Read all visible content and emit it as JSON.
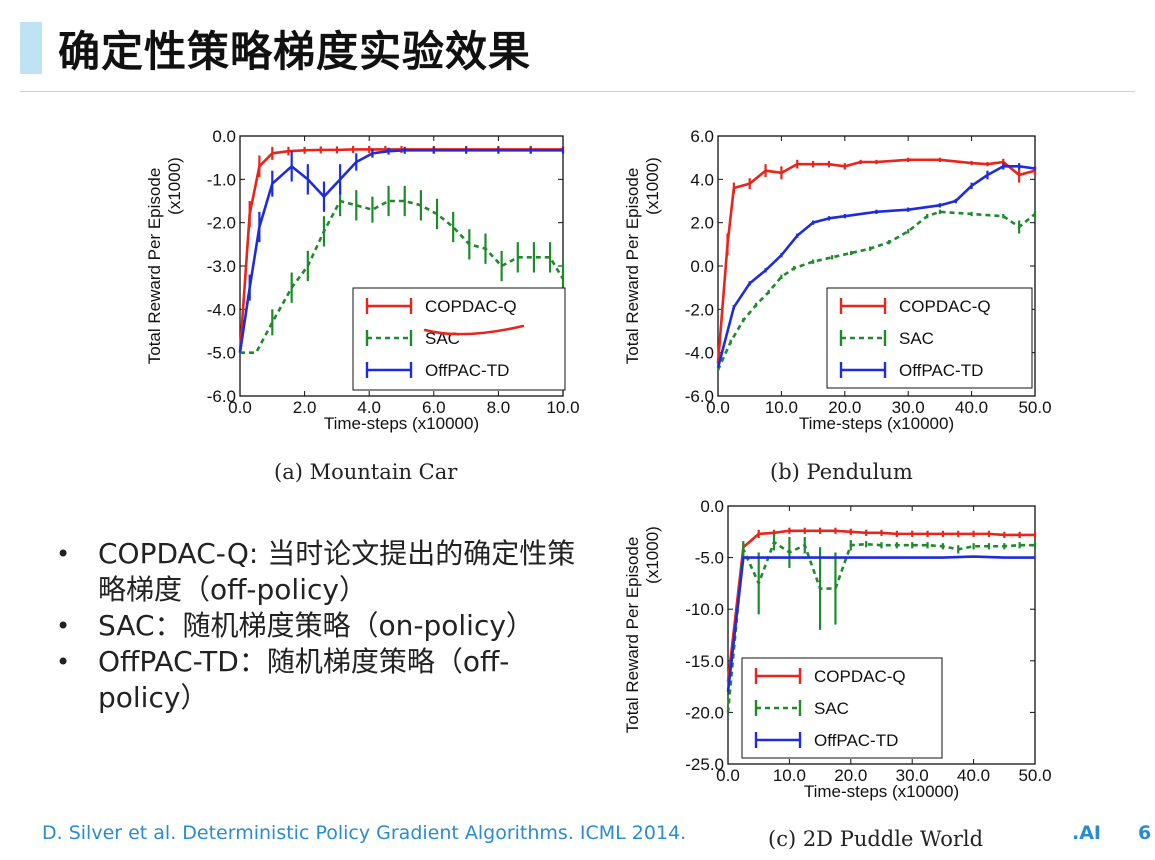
{
  "title": "确定性策略梯度实验效果",
  "bullets": [
    "COPDAC-Q: 当时论文提出的确定性策略梯度（off-policy）",
    "SAC：随机梯度策略（on-policy）",
    "OffPAC-TD：随机梯度策略（off-policy）"
  ],
  "footer": "D. Silver et al. Deterministic Policy Gradient Algorithms. ICML 2014.",
  "footer_brand": ".AI",
  "page_number": "6",
  "colors": {
    "copdac": "#e8241c",
    "sac": "#1f8a2c",
    "offpac": "#1e2cdc",
    "annotation": "#e8241c"
  },
  "chart_data": [
    {
      "id": "mountain",
      "type": "line",
      "caption": "(a) Mountain Car",
      "title": "",
      "xlabel": "Time-steps (x10000)",
      "ylabel": "Total Reward Per Episode (x1000)",
      "xlim": [
        0,
        10
      ],
      "ylim": [
        -6,
        0
      ],
      "xticks": [
        "0.0",
        "2.0",
        "4.0",
        "6.0",
        "8.0",
        "10.0"
      ],
      "yticks": [
        "0.0",
        "-1.0",
        "-2.0",
        "-3.0",
        "-4.0",
        "-5.0",
        "-6.0"
      ],
      "legend": {
        "position": "bottom-right",
        "entries": [
          "COPDAC-Q",
          "SAC",
          "OffPAC-TD"
        ]
      },
      "series": [
        {
          "name": "COPDAC-Q",
          "style": "solid",
          "x": [
            0,
            0.3,
            0.6,
            1.0,
            1.5,
            2.0,
            2.5,
            3.0,
            3.5,
            4.0,
            4.5,
            5.0,
            6.0,
            7.0,
            8.0,
            9.0,
            10.0
          ],
          "values": [
            -5.0,
            -1.8,
            -0.7,
            -0.4,
            -0.35,
            -0.33,
            -0.32,
            -0.32,
            -0.31,
            -0.31,
            -0.31,
            -0.31,
            -0.31,
            -0.31,
            -0.31,
            -0.31,
            -0.31
          ],
          "err": [
            0,
            0.3,
            0.25,
            0.15,
            0.1,
            0.08,
            0.08,
            0.08,
            0.08,
            0.08,
            0.08,
            0.08,
            0.08,
            0.08,
            0.08,
            0.08,
            0.08
          ]
        },
        {
          "name": "SAC",
          "style": "dashed",
          "x": [
            0,
            0.5,
            1.0,
            1.6,
            2.1,
            2.6,
            3.1,
            3.6,
            4.1,
            4.6,
            5.1,
            5.6,
            6.1,
            6.6,
            7.1,
            7.6,
            8.1,
            8.6,
            9.1,
            9.6,
            10.0
          ],
          "values": [
            -5.0,
            -5.0,
            -4.3,
            -3.5,
            -3.0,
            -2.2,
            -1.5,
            -1.6,
            -1.7,
            -1.5,
            -1.5,
            -1.6,
            -1.8,
            -2.1,
            -2.5,
            -2.6,
            -3.0,
            -2.8,
            -2.8,
            -2.8,
            -3.3
          ],
          "err": [
            0,
            0,
            0.3,
            0.35,
            0.35,
            0.35,
            0.35,
            0.35,
            0.3,
            0.35,
            0.35,
            0.35,
            0.35,
            0.35,
            0.35,
            0.35,
            0.35,
            0.35,
            0.35,
            0.35,
            0.35
          ]
        },
        {
          "name": "OffPAC-TD",
          "style": "solid",
          "x": [
            0,
            0.3,
            0.6,
            1.0,
            1.6,
            2.1,
            2.6,
            3.1,
            3.6,
            4.1,
            4.6,
            5.1,
            6.0,
            7.0,
            8.0,
            9.0,
            10.0
          ],
          "values": [
            -5.0,
            -3.5,
            -2.1,
            -1.1,
            -0.7,
            -1.0,
            -1.4,
            -1.0,
            -0.6,
            -0.4,
            -0.35,
            -0.33,
            -0.33,
            -0.33,
            -0.33,
            -0.33,
            -0.33
          ],
          "err": [
            0,
            0.3,
            0.35,
            0.3,
            0.35,
            0.35,
            0.35,
            0.35,
            0.2,
            0.1,
            0.08,
            0.08,
            0.08,
            0.08,
            0.08,
            0.08,
            0.08
          ]
        }
      ]
    },
    {
      "id": "pendulum",
      "type": "line",
      "caption": "(b) Pendulum",
      "title": "",
      "xlabel": "Time-steps (x10000)",
      "ylabel": "Total Reward Per Episode (x1000)",
      "xlim": [
        0,
        50
      ],
      "ylim": [
        -6,
        6
      ],
      "xticks": [
        "0.0",
        "10.0",
        "20.0",
        "30.0",
        "40.0",
        "50.0"
      ],
      "yticks": [
        "6.0",
        "4.0",
        "2.0",
        "0.0",
        "-2.0",
        "-4.0",
        "-6.0"
      ],
      "legend": {
        "position": "bottom-right",
        "entries": [
          "COPDAC-Q",
          "SAC",
          "OffPAC-TD"
        ]
      },
      "series": [
        {
          "name": "COPDAC-Q",
          "style": "solid",
          "x": [
            0,
            1.5,
            2.5,
            5,
            7.5,
            10,
            12.5,
            15,
            17.5,
            20,
            22.5,
            25,
            30,
            35,
            40,
            42.5,
            45,
            47.5,
            50
          ],
          "values": [
            -4.5,
            1.0,
            3.6,
            3.8,
            4.4,
            4.3,
            4.7,
            4.7,
            4.7,
            4.6,
            4.8,
            4.8,
            4.9,
            4.9,
            4.75,
            4.7,
            4.8,
            4.2,
            4.4
          ],
          "err": [
            0,
            0.5,
            0.25,
            0.25,
            0.3,
            0.3,
            0.2,
            0.15,
            0.15,
            0.15,
            0.1,
            0.1,
            0.1,
            0.1,
            0.1,
            0.1,
            0.15,
            0.35,
            0.2
          ]
        },
        {
          "name": "SAC",
          "style": "dashed",
          "x": [
            0,
            2,
            4,
            6,
            8,
            10,
            12,
            15,
            18,
            21,
            24,
            27,
            30,
            33,
            35,
            40,
            45,
            47.5,
            50
          ],
          "values": [
            -4.8,
            -3.5,
            -2.5,
            -1.8,
            -1.2,
            -0.5,
            -0.1,
            0.2,
            0.4,
            0.6,
            0.8,
            1.1,
            1.6,
            2.3,
            2.5,
            2.4,
            2.3,
            1.8,
            2.4
          ],
          "err": [
            0,
            0.1,
            0.1,
            0.1,
            0.1,
            0.1,
            0.1,
            0.1,
            0.1,
            0.1,
            0.1,
            0.1,
            0.1,
            0.1,
            0.1,
            0.1,
            0.1,
            0.3,
            0.15
          ]
        },
        {
          "name": "OffPAC-TD",
          "style": "solid",
          "x": [
            0,
            2.5,
            5,
            7.5,
            10,
            12.5,
            15,
            17.5,
            20,
            25,
            30,
            35,
            37.5,
            40,
            42.5,
            45,
            47.5,
            50
          ],
          "values": [
            -4.7,
            -1.9,
            -0.8,
            -0.2,
            0.5,
            1.4,
            2.0,
            2.2,
            2.3,
            2.5,
            2.6,
            2.8,
            3.0,
            3.7,
            4.2,
            4.6,
            4.6,
            4.5
          ],
          "err": [
            0,
            0.1,
            0.1,
            0.1,
            0.1,
            0.1,
            0.1,
            0.1,
            0.1,
            0.1,
            0.1,
            0.1,
            0.1,
            0.15,
            0.2,
            0.15,
            0.15,
            0.1
          ]
        }
      ]
    },
    {
      "id": "puddle",
      "type": "line",
      "caption": "(c) 2D Puddle World",
      "title": "",
      "xlabel": "Time-steps (x10000)",
      "ylabel": "Total Reward Per Episode (x1000)",
      "xlim": [
        0,
        50
      ],
      "ylim": [
        -25,
        0
      ],
      "xticks": [
        "0.0",
        "10.0",
        "20.0",
        "30.0",
        "40.0",
        "50.0"
      ],
      "yticks": [
        "0.0",
        "-5.0",
        "-10.0",
        "-15.0",
        "-20.0",
        "-25.0"
      ],
      "legend": {
        "position": "bottom-right",
        "entries": [
          "COPDAC-Q",
          "SAC",
          "OffPAC-TD"
        ]
      },
      "series": [
        {
          "name": "COPDAC-Q",
          "style": "solid",
          "x": [
            0,
            2.5,
            5,
            7.5,
            10,
            12.5,
            15,
            17.5,
            20,
            22.5,
            25,
            27.5,
            30,
            32.5,
            35,
            37.5,
            40,
            42.5,
            45,
            47.5,
            50
          ],
          "values": [
            -17,
            -4.0,
            -2.7,
            -2.6,
            -2.4,
            -2.4,
            -2.4,
            -2.4,
            -2.5,
            -2.6,
            -2.6,
            -2.7,
            -2.7,
            -2.7,
            -2.7,
            -2.7,
            -2.7,
            -2.7,
            -2.8,
            -2.8,
            -2.8
          ],
          "err": [
            0,
            0.4,
            0.4,
            0.3,
            0.3,
            0.3,
            0.3,
            0.3,
            0.3,
            0.3,
            0.3,
            0.3,
            0.3,
            0.3,
            0.3,
            0.3,
            0.3,
            0.3,
            0.3,
            0.3,
            0.3
          ]
        },
        {
          "name": "SAC",
          "style": "dashed",
          "x": [
            0,
            2.5,
            5,
            7.5,
            10,
            12.5,
            15,
            17.5,
            20,
            22.5,
            25,
            27.5,
            30,
            32.5,
            35,
            37.5,
            40,
            42.5,
            45,
            47.5,
            50
          ],
          "values": [
            -20,
            -4.2,
            -7.5,
            -3.5,
            -4.5,
            -3.8,
            -8.0,
            -8.0,
            -3.8,
            -3.7,
            -3.8,
            -3.8,
            -3.8,
            -3.8,
            -3.9,
            -4.2,
            -3.9,
            -3.9,
            -3.9,
            -3.8,
            -3.8
          ],
          "err": [
            0,
            0.8,
            3.0,
            0.8,
            1.5,
            0.8,
            4.0,
            3.5,
            0.5,
            0.3,
            0.3,
            0.3,
            0.3,
            0.3,
            0.3,
            0.4,
            0.3,
            0.3,
            0.3,
            0.3,
            0.3
          ]
        },
        {
          "name": "OffPAC-TD",
          "style": "solid",
          "x": [
            0,
            2.5,
            5,
            10,
            15,
            20,
            25,
            30,
            35,
            40,
            45,
            50
          ],
          "values": [
            -18,
            -5.0,
            -5.0,
            -5.0,
            -5.0,
            -5.0,
            -5.0,
            -5.0,
            -5.0,
            -4.9,
            -5.0,
            -5.0
          ],
          "err": [
            0,
            0,
            0,
            0,
            0,
            0,
            0,
            0,
            0,
            0,
            0,
            0
          ]
        }
      ]
    }
  ]
}
